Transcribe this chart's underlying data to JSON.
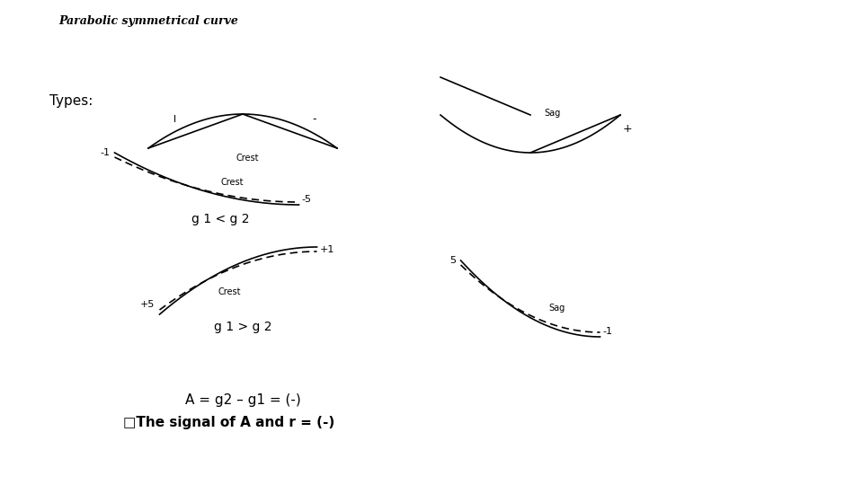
{
  "title": "Parabolic symmetrical curve",
  "types_label": "Types:",
  "crest_label": "Crest",
  "sag_label": "Sag",
  "g1_g2_label1": "g 1 > g 2",
  "g1_g2_label2": "g 1 < g 2",
  "formula": "A = g2 – g1 = (-)",
  "signal_note": "□The signal of A and r = (-)",
  "bg_color": "#ffffff",
  "line_color": "#000000"
}
